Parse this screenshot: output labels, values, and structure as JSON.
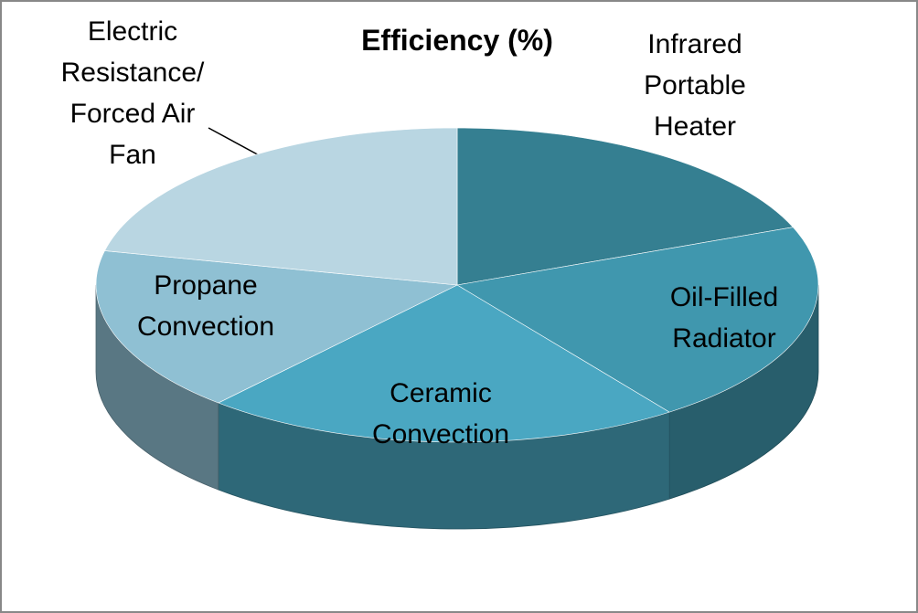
{
  "chart_data": {
    "type": "pie3d",
    "title": "Efficiency (%)",
    "categories": [
      "Infrared Portable Heater",
      "Oil-Filled Radiator",
      "Ceramic Convection",
      "Propane Convection",
      "Electric Resistance/ Forced Air Fan"
    ],
    "values": [
      19,
      21,
      21.5,
      17,
      21.5
    ],
    "colors": [
      "#357f91",
      "#4097ae",
      "#4aa7c2",
      "#8fc0d3",
      "#b9d6e2"
    ]
  }
}
